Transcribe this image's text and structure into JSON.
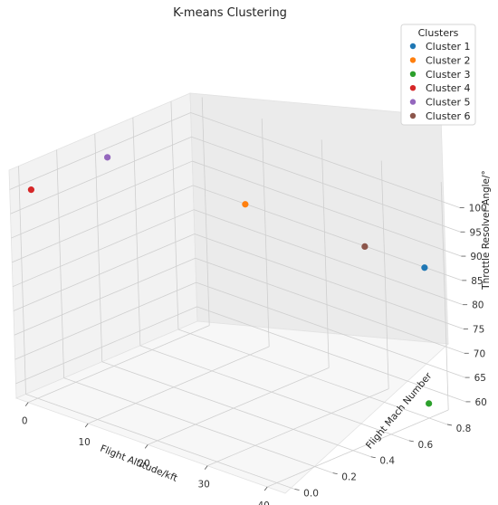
{
  "chart_data": {
    "type": "scatter",
    "projection": "3d",
    "title": "K-means Clustering",
    "xlabel": "Flight Altitude/kft",
    "ylabel": "Flight Mach Number",
    "zlabel": "Throttle Resolver Angle/°",
    "xlim": [
      -2,
      43
    ],
    "ylim": [
      -0.05,
      0.9
    ],
    "zlim": [
      57,
      104
    ],
    "xticks": [
      "0",
      "10",
      "20",
      "30",
      "40"
    ],
    "yticks": [
      "0.0",
      "0.2",
      "0.4",
      "0.6",
      "0.8"
    ],
    "zticks": [
      "60",
      "65",
      "70",
      "75",
      "80",
      "85",
      "90",
      "95",
      "100"
    ],
    "grid": true,
    "legend": {
      "title": "Clusters",
      "placement": "top-right"
    },
    "series": [
      {
        "name": "Cluster 1",
        "color": "#1f77b4",
        "x": 40,
        "y": 0.8,
        "z": 88
      },
      {
        "name": "Cluster 2",
        "color": "#ff7f0e",
        "x": 10,
        "y": 0.8,
        "z": 88
      },
      {
        "name": "Cluster 3",
        "color": "#2ca02c",
        "x": 40,
        "y": 0.8,
        "z": 60
      },
      {
        "name": "Cluster 4",
        "color": "#d62728",
        "x": 0,
        "y": 0.0,
        "z": 100
      },
      {
        "name": "Cluster 5",
        "color": "#9467bd",
        "x": 0,
        "y": 0.4,
        "z": 100
      },
      {
        "name": "Cluster 6",
        "color": "#8c564b",
        "x": 30,
        "y": 0.8,
        "z": 88
      }
    ]
  }
}
